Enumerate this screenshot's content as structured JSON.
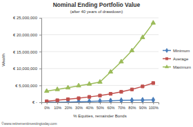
{
  "chart_data": {
    "type": "line",
    "title": "Nominal Ending Portfolio Value",
    "subtitle": "(after 40 years of drawdown)",
    "y_label": "Wealth",
    "x_label": "% Equities, remainder Bonds",
    "annotation": "©www.retirementinvestingtoday.com",
    "categories": [
      "0%",
      "10%",
      "20%",
      "30%",
      "40%",
      "50%",
      "60%",
      "70%",
      "80%",
      "90%",
      "100%"
    ],
    "series": [
      {
        "name": "Minimum",
        "color": "#4a7ebb",
        "marker": "diamond",
        "values": [
          0,
          0,
          50000,
          150000,
          250000,
          350000,
          450000,
          550000,
          600000,
          650000,
          700000
        ]
      },
      {
        "name": "Average",
        "color": "#c0504d",
        "marker": "square",
        "values": [
          300000,
          600000,
          900000,
          1200000,
          1600000,
          2000000,
          2500000,
          3100000,
          3800000,
          4700000,
          5700000
        ]
      },
      {
        "name": "Maximum",
        "color": "#9bbb59",
        "marker": "triangle",
        "values": [
          3300000,
          3800000,
          4300000,
          4900000,
          5400000,
          6000000,
          9000000,
          12000000,
          15300000,
          19200000,
          23500000
        ]
      }
    ],
    "ylim": [
      0,
      25000000
    ],
    "yticks": [
      {
        "value": 0,
        "label": "€ -"
      },
      {
        "value": 5000000,
        "label": "€ 5,000,000"
      },
      {
        "value": 10000000,
        "label": "€ 10,000,000"
      },
      {
        "value": 15000000,
        "label": "€ 15,000,000"
      },
      {
        "value": 20000000,
        "label": "€ 20,000,000"
      },
      {
        "value": 25000000,
        "label": "€ 25,000,000"
      }
    ],
    "grid": true,
    "legend": "right"
  }
}
